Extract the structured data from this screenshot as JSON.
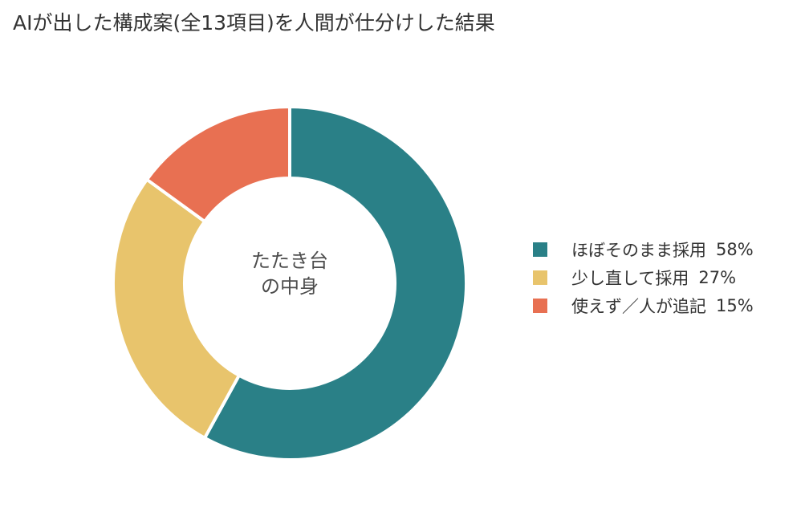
{
  "chart_data": {
    "type": "pie",
    "variant": "donut",
    "title": "AIが出した構成案(全13項目)を人間が仕分けした結果",
    "center_label": [
      "たたき台",
      "の中身"
    ],
    "legend_position": "right",
    "slices": [
      {
        "label": "ほぼそのまま採用",
        "value": 58,
        "value_label": "58%",
        "color": "#2a8087"
      },
      {
        "label": "少し直して採用",
        "value": 27,
        "value_label": "27%",
        "color": "#e8c46c"
      },
      {
        "label": "使えず／人が追記",
        "value": 15,
        "value_label": "15%",
        "color": "#e87052"
      }
    ]
  }
}
